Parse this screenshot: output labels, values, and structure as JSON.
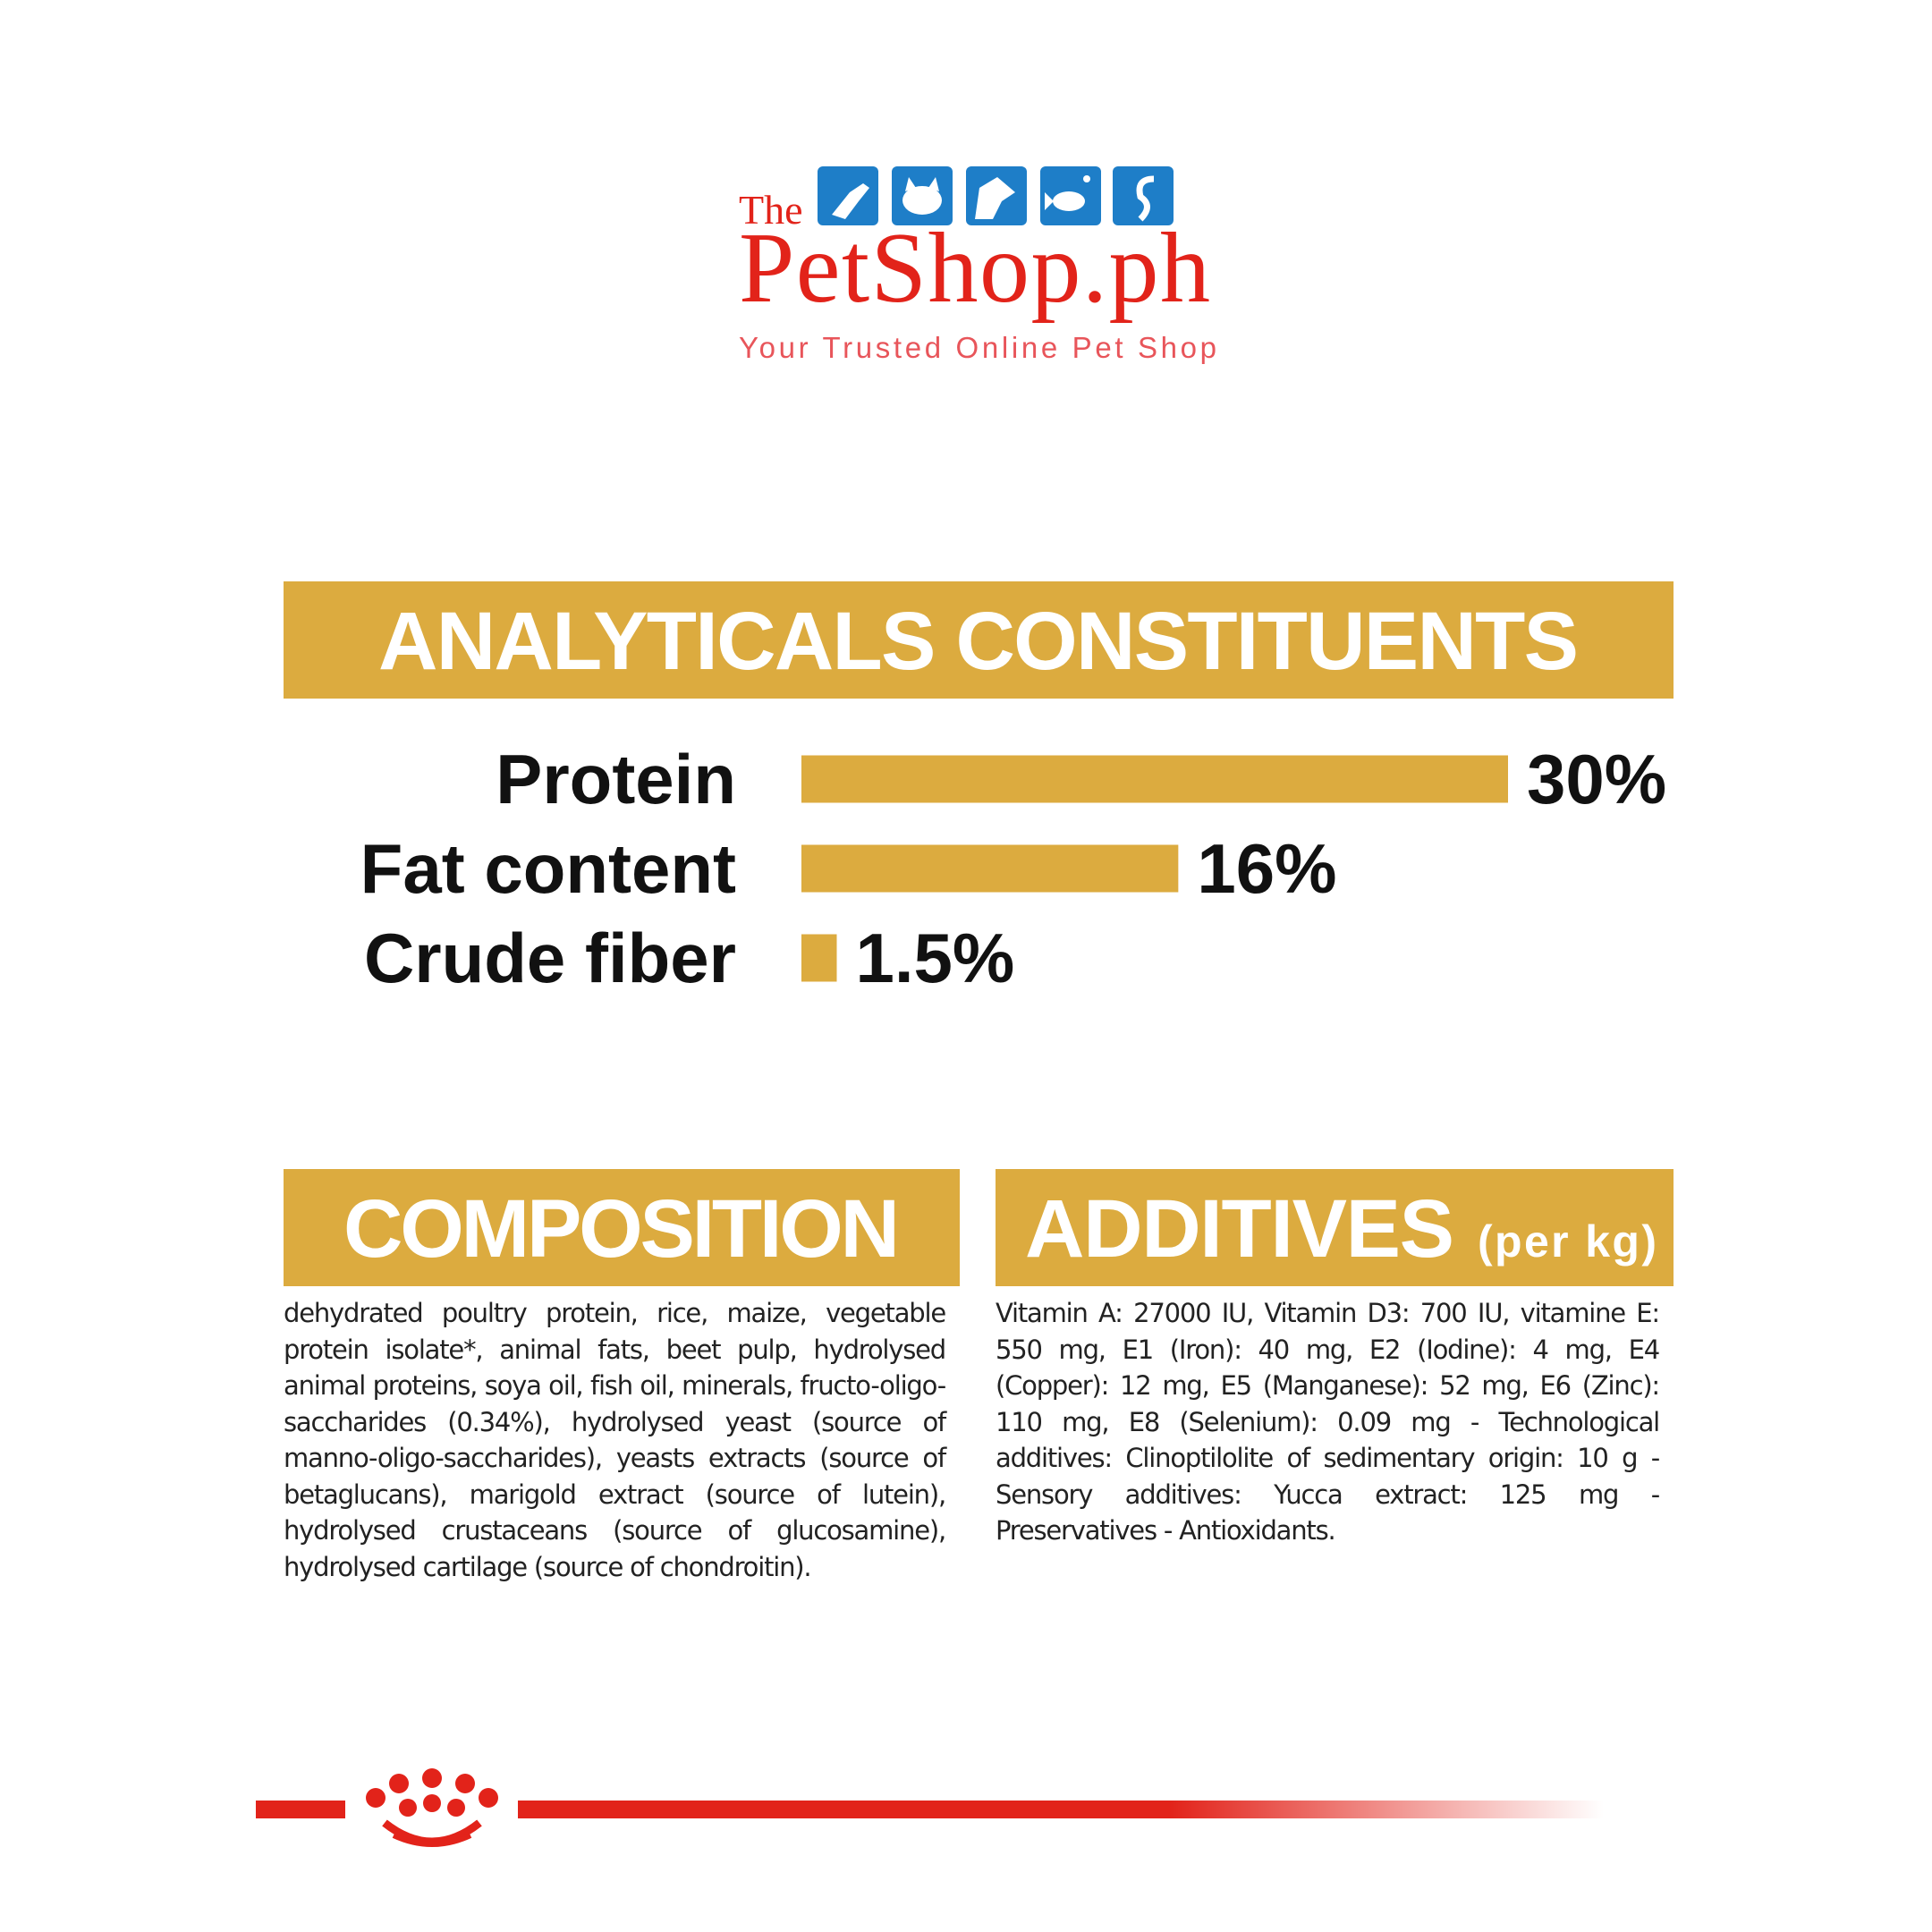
{
  "header": {
    "brand_prefix": "The",
    "brand": "PetShop.ph",
    "tagline": "Your Trusted Online Pet Shop"
  },
  "chart_data": {
    "type": "bar",
    "orientation": "horizontal",
    "title": "ANALYTICALS CONSTITUENTS",
    "categories": [
      "Protein",
      "Fat content",
      "Crude fiber"
    ],
    "values": [
      30,
      16,
      1.5
    ],
    "value_labels": [
      "30%",
      "16%",
      "1.5%"
    ],
    "color": "#dcab3f"
  },
  "composition": {
    "title": "COMPOSITION",
    "text": "dehydrated poultry protein, rice, maize, vegetable protein isolate*, animal fats, beet pulp, hydrolysed animal proteins, soya oil, fish oil, minerals, fructo-oligo-saccharides (0.34%), hydrolysed yeast (source of manno-oligo-saccharides), yeasts extracts (source of betaglucans), marigold extract (source of lutein), hydrolysed crustaceans (source of glucosamine), hydrolysed cartilage (source of chondroitin)."
  },
  "additives": {
    "title": "ADDITIVES",
    "subtitle": "(per kg)",
    "text": "Vitamin A: 27000 IU, Vitamin D3: 700 IU, vitamine E: 550 mg, E1 (Iron): 40 mg, E2 (Iodine): 4 mg, E4 (Copper): 12 mg, E5 (Manganese): 52 mg, E6 (Zinc): 110 mg, E8 (Selenium): 0.09 mg - Technological additives: Clinoptilolite of sedimentary origin: 10 g - Sensory additives: Yucca extract: 125 mg - Preservatives - Antioxidants."
  }
}
